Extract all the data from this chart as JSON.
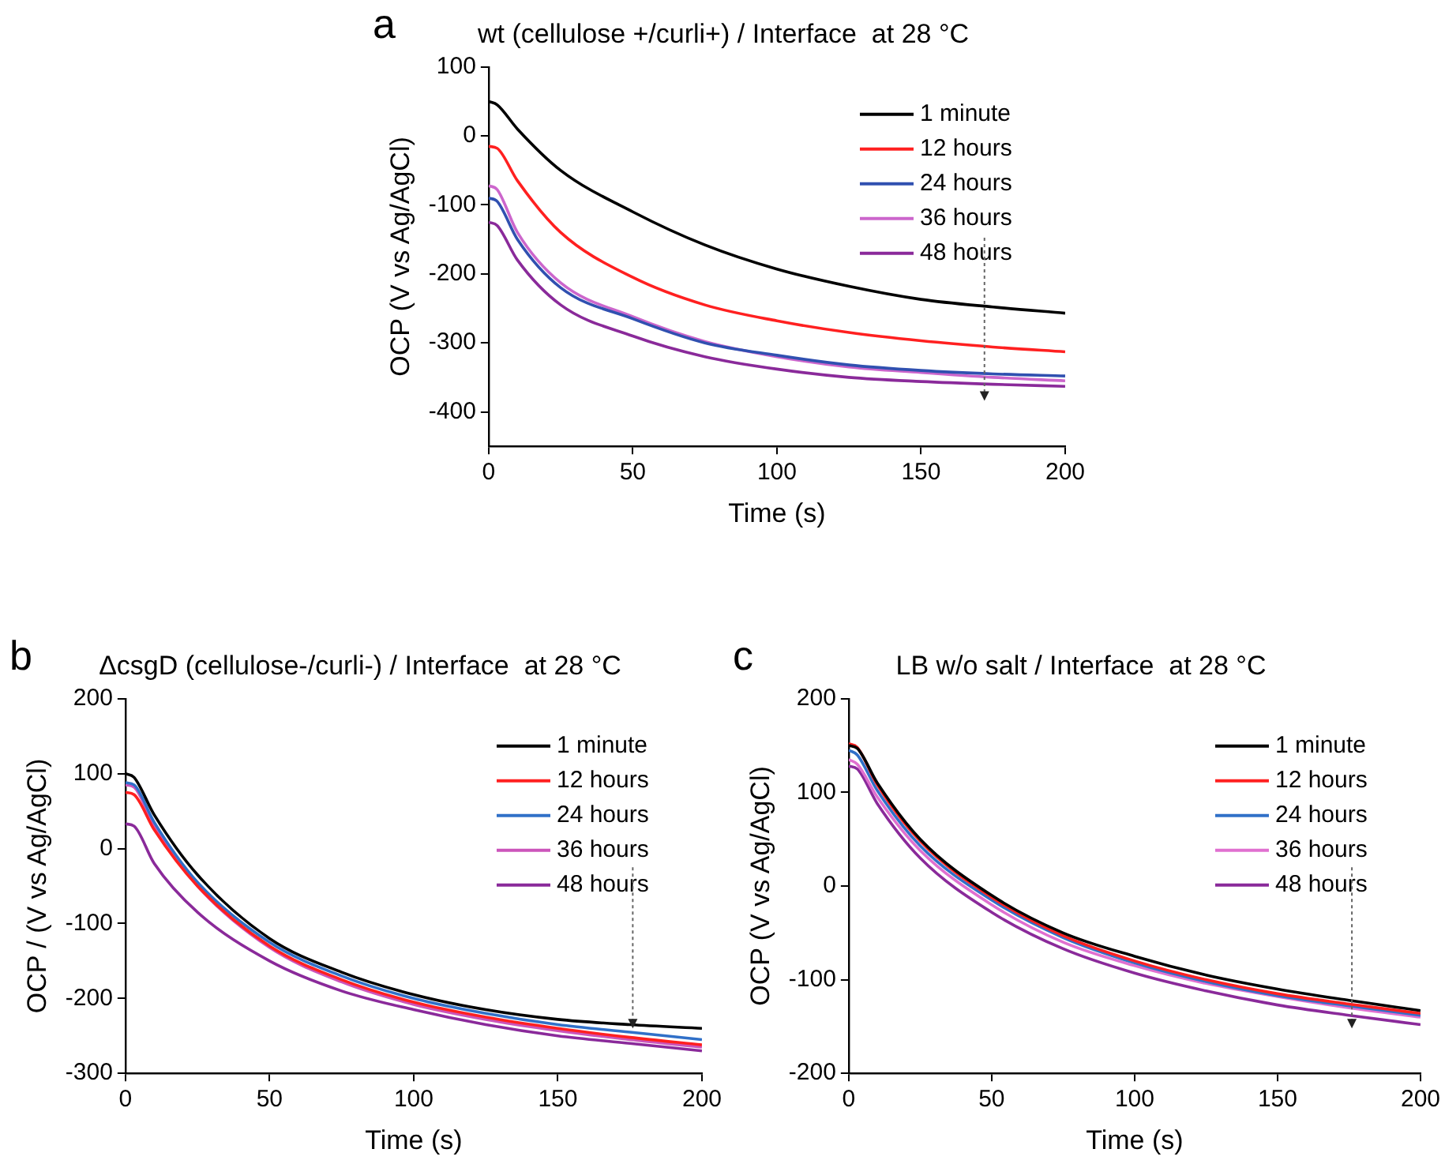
{
  "chart_data": [
    {
      "type": "line",
      "title": "wt (cellulose +/curli+) / Interface  at 28 °C",
      "annotations": [
        "a"
      ],
      "xlabel": "Time (s)",
      "ylabel": "OCP (V vs Ag/AgCl)",
      "x": [
        0,
        3,
        10,
        25,
        50,
        75,
        100,
        125,
        150,
        175,
        200
      ],
      "xlim": [
        0,
        200
      ],
      "xticks": [
        0,
        50,
        100,
        150,
        200
      ],
      "ylim": [
        -450,
        100
      ],
      "yticks": [
        -400,
        -300,
        -200,
        -100,
        0,
        100
      ],
      "legend": "top right",
      "grid": false,
      "marker": "none",
      "line_style": "solid",
      "series": [
        {
          "name": "1 minute",
          "color": "#000000",
          "values": [
            50,
            45,
            10,
            -50,
            -110,
            -158,
            -193,
            -218,
            -237,
            -248,
            -257
          ]
        },
        {
          "name": "12 hours",
          "color": "#ff2020",
          "values": [
            -15,
            -18,
            -65,
            -140,
            -205,
            -245,
            -268,
            -285,
            -297,
            -306,
            -313
          ]
        },
        {
          "name": "24 hours",
          "color": "#3050b0",
          "values": [
            -90,
            -95,
            -150,
            -220,
            -265,
            -300,
            -318,
            -332,
            -340,
            -345,
            -348
          ]
        },
        {
          "name": "36 hours",
          "color": "#cc66cc",
          "values": [
            -72,
            -78,
            -140,
            -213,
            -262,
            -298,
            -320,
            -335,
            -343,
            -350,
            -355
          ]
        },
        {
          "name": "48 hours",
          "color": "#8a2a9a",
          "values": [
            -125,
            -130,
            -180,
            -245,
            -290,
            -320,
            -338,
            -350,
            -356,
            -360,
            -363
          ]
        }
      ]
    },
    {
      "type": "line",
      "title": "ΔcsgD (cellulose-/curli-) / Interface  at 28 °C",
      "annotations": [
        "b"
      ],
      "xlabel": "Time (s)",
      "ylabel": "OCP / (V vs Ag/AgCl)",
      "x": [
        0,
        3,
        10,
        25,
        50,
        75,
        100,
        125,
        150,
        175,
        200
      ],
      "xlim": [
        0,
        200
      ],
      "xticks": [
        0,
        50,
        100,
        150,
        200
      ],
      "ylim": [
        -300,
        200
      ],
      "yticks": [
        -300,
        -200,
        -100,
        0,
        100,
        200
      ],
      "legend": "top right",
      "grid": false,
      "marker": "none",
      "line_style": "solid",
      "series": [
        {
          "name": "1 minute",
          "color": "#000000",
          "values": [
            100,
            95,
            45,
            -35,
            -120,
            -165,
            -195,
            -215,
            -228,
            -235,
            -240
          ]
        },
        {
          "name": "12 hours",
          "color": "#ff2020",
          "values": [
            75,
            72,
            25,
            -50,
            -130,
            -175,
            -205,
            -225,
            -240,
            -252,
            -262
          ]
        },
        {
          "name": "24 hours",
          "color": "#3070c8",
          "values": [
            88,
            85,
            35,
            -45,
            -125,
            -170,
            -200,
            -220,
            -235,
            -245,
            -255
          ]
        },
        {
          "name": "36 hours",
          "color": "#cc55bb",
          "values": [
            85,
            82,
            30,
            -50,
            -132,
            -178,
            -208,
            -228,
            -243,
            -255,
            -265
          ]
        },
        {
          "name": "48 hours",
          "color": "#8a2a9a",
          "values": [
            33,
            30,
            -20,
            -85,
            -150,
            -190,
            -215,
            -235,
            -250,
            -260,
            -270
          ]
        }
      ]
    },
    {
      "type": "line",
      "title": "LB w/o salt / Interface  at 28 °C",
      "annotations": [
        "c"
      ],
      "xlabel": "Time (s)",
      "ylabel": "OCP (V vs Ag/AgCl)",
      "x": [
        0,
        3,
        10,
        25,
        50,
        75,
        100,
        125,
        150,
        175,
        200
      ],
      "xlim": [
        0,
        200
      ],
      "xticks": [
        0,
        50,
        100,
        150,
        200
      ],
      "ylim": [
        -200,
        200
      ],
      "yticks": [
        -200,
        -100,
        0,
        100,
        200
      ],
      "legend": "top right",
      "grid": false,
      "marker": "none",
      "line_style": "solid",
      "series": [
        {
          "name": "1 minute",
          "color": "#000000",
          "values": [
            150,
            147,
            110,
            50,
            -10,
            -50,
            -75,
            -95,
            -110,
            -122,
            -133
          ]
        },
        {
          "name": "12 hours",
          "color": "#ff2020",
          "values": [
            152,
            148,
            108,
            48,
            -12,
            -53,
            -80,
            -100,
            -115,
            -126,
            -136
          ]
        },
        {
          "name": "24 hours",
          "color": "#3070c8",
          "values": [
            145,
            140,
            102,
            43,
            -15,
            -55,
            -82,
            -102,
            -117,
            -128,
            -138
          ]
        },
        {
          "name": "36 hours",
          "color": "#e070d0",
          "values": [
            135,
            130,
            95,
            38,
            -20,
            -60,
            -85,
            -104,
            -118,
            -130,
            -140
          ]
        },
        {
          "name": "48 hours",
          "color": "#8a2a9a",
          "values": [
            128,
            125,
            88,
            30,
            -28,
            -67,
            -93,
            -112,
            -127,
            -138,
            -148
          ]
        }
      ]
    }
  ]
}
